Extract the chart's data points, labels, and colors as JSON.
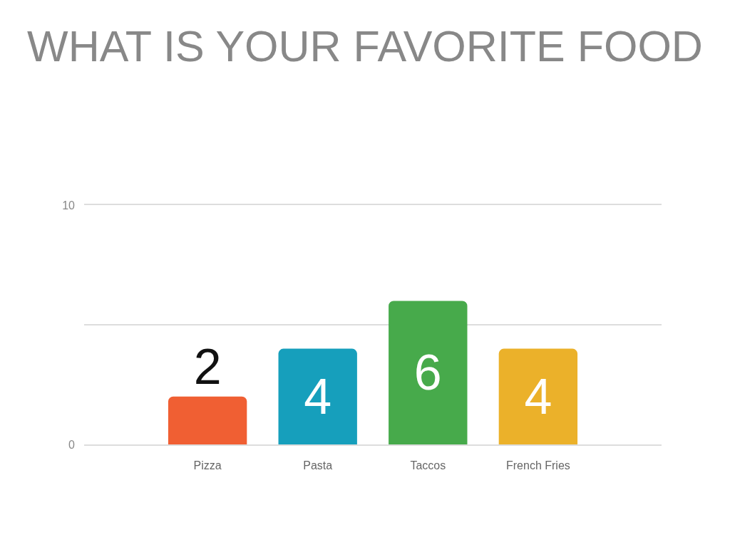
{
  "chart_data": {
    "type": "bar",
    "title": "WHAT IS YOUR FAVORITE FOOD",
    "categories": [
      "Pizza",
      "Pasta",
      "Taccos",
      "French Fries"
    ],
    "values": [
      2,
      4,
      6,
      4
    ],
    "colors": [
      "#f05f33",
      "#169fbc",
      "#47aa4b",
      "#ebb12a"
    ],
    "ylim": [
      0,
      10
    ],
    "yticks": [
      0,
      {
        "value": 5,
        "label": null
      },
      10
    ],
    "grid": "y",
    "data_labels": true
  }
}
